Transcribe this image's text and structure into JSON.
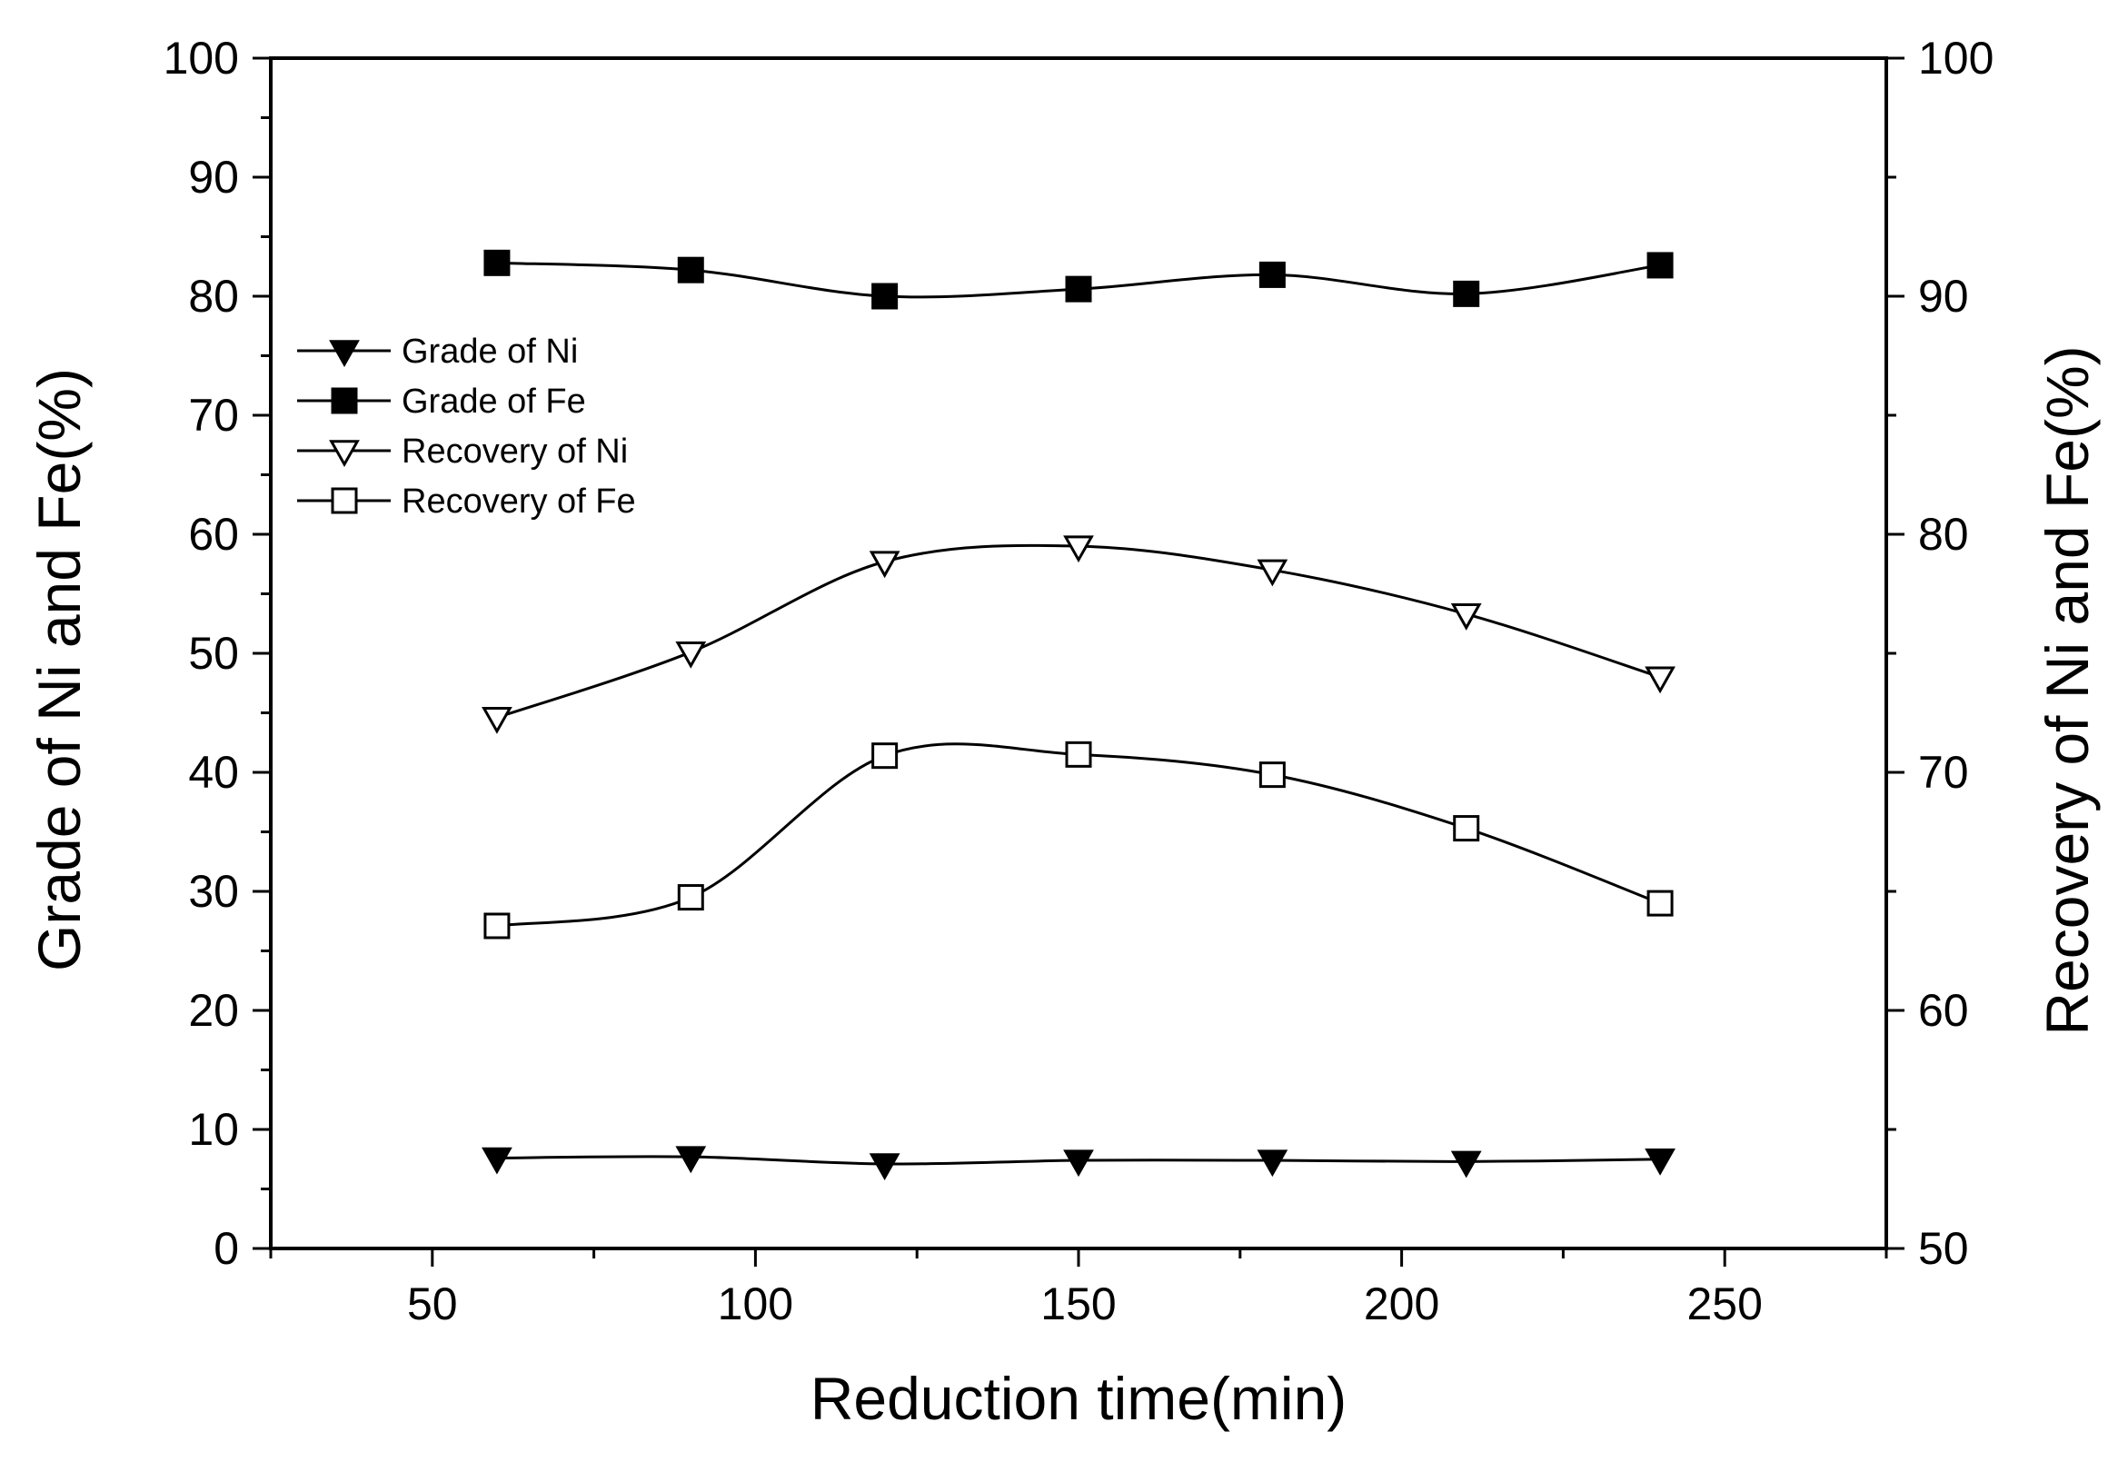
{
  "chart_data": {
    "type": "line",
    "title": "",
    "xlabel": "Reduction time(min)",
    "ylabel_left": "Grade of Ni and Fe(%)",
    "ylabel_right": "Recovery of Ni and Fe(%)",
    "xlim": [
      25,
      275
    ],
    "ylim_left": [
      0,
      100
    ],
    "ylim_right": [
      50,
      100
    ],
    "x_ticks": [
      50,
      100,
      150,
      200,
      250
    ],
    "y_ticks_left": [
      0,
      10,
      20,
      30,
      40,
      50,
      60,
      70,
      80,
      90,
      100
    ],
    "y_ticks_right": [
      50,
      60,
      70,
      80,
      90,
      100
    ],
    "x_tick_labels": [
      "50",
      "100",
      "150",
      "200",
      "250"
    ],
    "y_tick_labels_left": [
      "0",
      "10",
      "20",
      "30",
      "40",
      "50",
      "60",
      "70",
      "80",
      "90",
      "100"
    ],
    "y_tick_labels_right": [
      "50",
      "60",
      "70",
      "80",
      "90",
      "100"
    ],
    "grid": false,
    "legend_position": "upper-left",
    "x": [
      60,
      90,
      120,
      150,
      180,
      210,
      240
    ],
    "series": [
      {
        "name": "Grade of Ni",
        "axis": "left",
        "marker": "triangle-down-filled",
        "values": [
          7.6,
          7.7,
          7.1,
          7.4,
          7.4,
          7.3,
          7.5
        ]
      },
      {
        "name": "Grade of Fe",
        "axis": "left",
        "marker": "square-filled",
        "values": [
          82.8,
          82.2,
          80.0,
          80.6,
          81.8,
          80.2,
          82.6
        ]
      },
      {
        "name": "Recovery of Ni",
        "axis": "left",
        "marker": "triangle-down-open",
        "values": [
          44.6,
          50.1,
          57.7,
          59.0,
          57.0,
          53.3,
          48.0
        ]
      },
      {
        "name": "Recovery of Fe",
        "axis": "left",
        "marker": "square-open",
        "values": [
          27.1,
          29.5,
          41.4,
          41.5,
          39.8,
          35.3,
          29.0
        ]
      }
    ]
  }
}
